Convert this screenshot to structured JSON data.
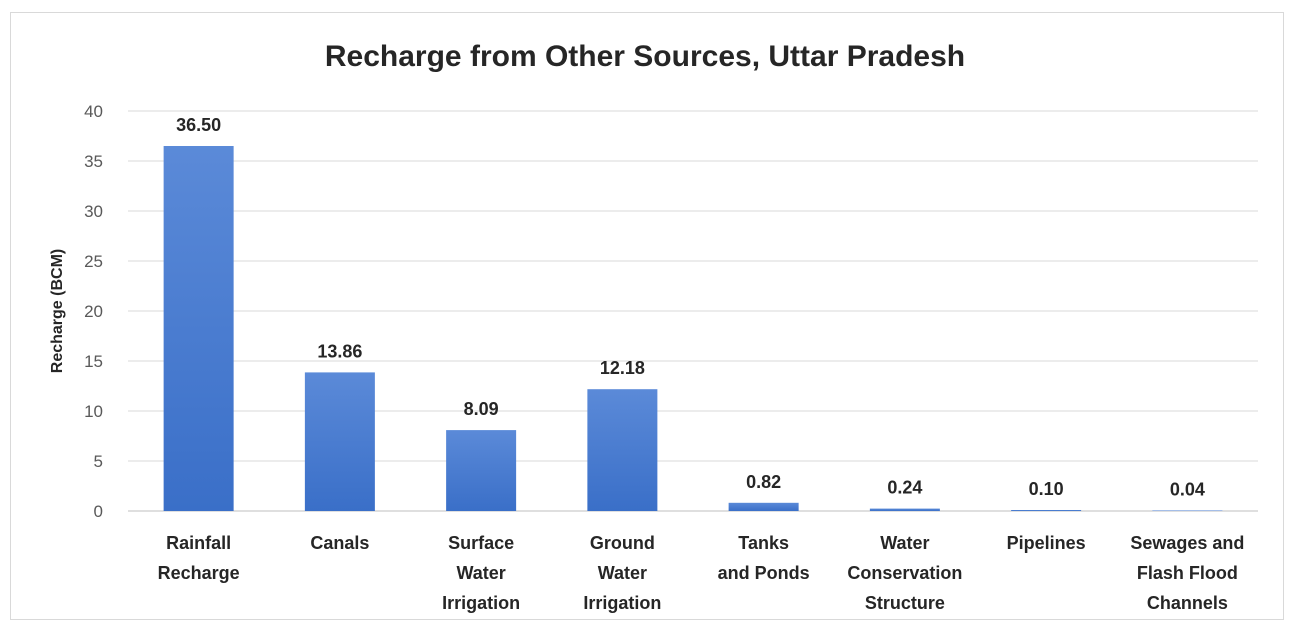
{
  "chart_data": {
    "type": "bar",
    "title": "Recharge from Other Sources, Uttar Pradesh",
    "ylabel": "Recharge (BCM)",
    "xlabel": "",
    "ylim": [
      0,
      40
    ],
    "yticks": [
      0,
      5,
      10,
      15,
      20,
      25,
      30,
      35,
      40
    ],
    "grid": true,
    "categories": [
      [
        "Rainfall",
        "Recharge"
      ],
      [
        "Canals"
      ],
      [
        "Surface",
        "Water",
        "Irrigation"
      ],
      [
        "Ground",
        "Water",
        "Irrigation"
      ],
      [
        "Tanks",
        "and Ponds"
      ],
      [
        "Water",
        "Conservation",
        "Structure"
      ],
      [
        "Pipelines"
      ],
      [
        "Sewages and",
        "Flash Flood",
        "Channels"
      ]
    ],
    "values": [
      36.5,
      13.86,
      8.09,
      12.18,
      0.82,
      0.24,
      0.1,
      0.04
    ],
    "data_labels": [
      "36.50",
      "13.86",
      "8.09",
      "12.18",
      "0.82",
      "0.24",
      "0.10",
      "0.04"
    ],
    "bar_color": "#3a6fc8",
    "bar_color_light": "#5b8ad8"
  }
}
